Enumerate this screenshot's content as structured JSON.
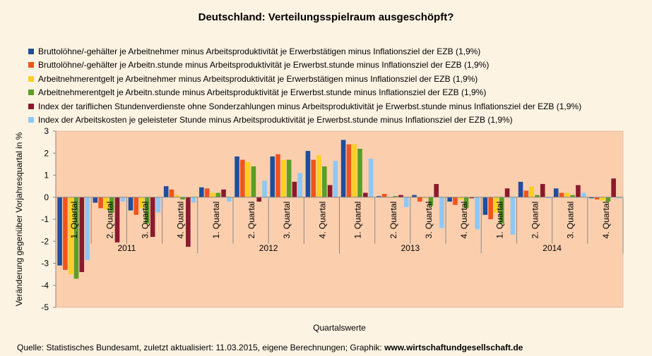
{
  "chart_data": {
    "type": "bar",
    "title": "Deutschland: Verteilungsspielraum ausgeschöpft?",
    "xlabel": "Quartalswerte",
    "ylabel": "Veränderung gegenüber Vorjahresquartal in %",
    "ylim": [
      -5,
      3
    ],
    "yticks": [
      3,
      2,
      1,
      0,
      -1,
      -2,
      -3,
      -4,
      -5
    ],
    "grid": false,
    "legend_position": "top",
    "categories": [
      "1. Quartal",
      "2. Quartal",
      "3. Quartal",
      "4. Quartal",
      "1. Quartal",
      "2. Quartal",
      "3. Quartal",
      "4. Quartal",
      "1. Quartal",
      "2. Quartal",
      "3. Quartal",
      "4. Quartal",
      "1. Quartal",
      "2. Quartal",
      "3. Quartal",
      "4. Quartal"
    ],
    "years": [
      "2011",
      "2012",
      "2013",
      "2014"
    ],
    "series": [
      {
        "name": "Bruttolöhne/-gehälter je Arbeitnehmer minus Arbeitsproduktivität je Erwerbstätigen minus Inflationsziel der EZB (1,9%)",
        "color": "#1f4e9c",
        "values": [
          -3.1,
          -0.25,
          -0.6,
          0.5,
          0.45,
          1.85,
          1.85,
          2.1,
          2.6,
          0.05,
          0.1,
          -0.2,
          -0.8,
          0.7,
          0.4,
          -0.05
        ]
      },
      {
        "name": "Bruttolöhne/-gehälter je Arbeitn.stunde minus Arbeitsproduktivität je Erwerbst.stunde minus Inflationsziel der EZB (1,9%)",
        "color": "#f0541c",
        "values": [
          -3.3,
          -0.5,
          -0.8,
          0.35,
          0.4,
          1.7,
          1.95,
          1.7,
          2.4,
          0.15,
          -0.2,
          -0.35,
          -1.0,
          0.3,
          0.2,
          -0.1
        ]
      },
      {
        "name": "Arbeitnehmerentgelt je Arbeitnehmer minus Arbeitsproduktivität je Erwerbstätigen minus Inflationsziel der EZB (1,9%)",
        "color": "#fbd020",
        "values": [
          -3.5,
          -0.55,
          -0.5,
          0.1,
          0.2,
          1.6,
          1.7,
          1.9,
          2.4,
          0.0,
          -0.05,
          -0.1,
          -0.7,
          0.5,
          0.2,
          -0.15
        ]
      },
      {
        "name": "Arbeitnehmerentgelt je Arbeitn.stunde minus Arbeitsproduktivität je Erwerbst.stunde minus Inflationsziel der EZB (1,9%)",
        "color": "#5a9e28",
        "values": [
          -3.7,
          -0.7,
          -1.2,
          -0.1,
          0.2,
          1.4,
          1.7,
          1.4,
          2.2,
          0.05,
          -0.4,
          -0.5,
          -1.2,
          0.1,
          0.1,
          -0.2
        ]
      },
      {
        "name": "Index der tariflichen Stundenverdienste ohne Sonderzahlungen minus Arbeitsproduktivität je Erwerbst.stunde minus Inflationsziel der EZB (1,9%)",
        "color": "#8b1a2e",
        "values": [
          -3.4,
          -2.05,
          -1.8,
          -2.25,
          0.35,
          -0.2,
          0.7,
          0.55,
          0.2,
          0.1,
          0.6,
          -0.05,
          0.4,
          0.6,
          0.55,
          0.85
        ]
      },
      {
        "name": "Index der Arbeitskosten je geleisteter Stunde minus Arbeitsproduktivität je Erwerbst.stunde minus Inflationsziel der EZB (1,9%)",
        "color": "#8ec8f4",
        "values": [
          -2.85,
          -0.2,
          -0.7,
          -0.25,
          -0.2,
          0.75,
          1.1,
          1.65,
          1.75,
          -0.45,
          -1.4,
          -1.45,
          -1.7,
          -0.05,
          0.2,
          -0.05
        ]
      }
    ]
  },
  "source": {
    "prefix": "Quelle: Statistisches Bundesamt, zuletzt aktualisiert: 11.03.2015, eigene Berechnungen; Graphik: ",
    "site": "www.wirtschaftundgesellschaft.de"
  }
}
